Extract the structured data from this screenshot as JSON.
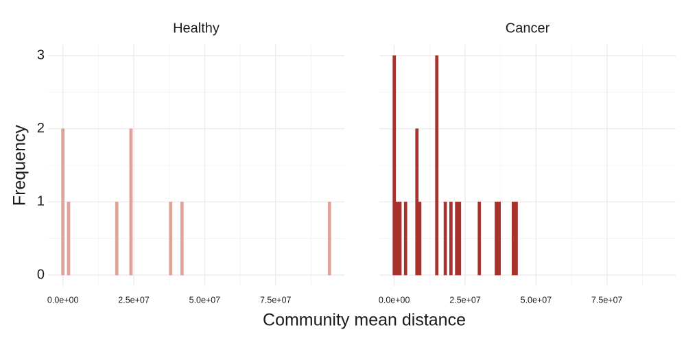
{
  "chart_data": [
    {
      "type": "histogram",
      "title": "Healthy",
      "color": "#e0a39a",
      "bins": [
        -500000,
        500000,
        1500000,
        2500000,
        3500000,
        4500000,
        5500000,
        6500000,
        7500000,
        8500000,
        9500000,
        10500000,
        11500000,
        12500000,
        13500000,
        14500000,
        15500000,
        16500000,
        17500000,
        18500000,
        19500000,
        20500000,
        21500000,
        22500000,
        23500000,
        24500000,
        25500000,
        26500000,
        27500000,
        28500000,
        29500000,
        30500000,
        31500000,
        32500000,
        33500000,
        34500000,
        35500000,
        36500000,
        37500000,
        38500000,
        39500000,
        40500000,
        41500000,
        42500000,
        43500000,
        44500000,
        45500000,
        46500000,
        47500000,
        48500000,
        49500000,
        50500000,
        51500000,
        52500000,
        53500000,
        54500000,
        55500000,
        56500000,
        57500000,
        58500000,
        59500000,
        60500000,
        61500000,
        62500000,
        63500000,
        64500000,
        65500000,
        66500000,
        67500000,
        68500000,
        69500000,
        70500000,
        71500000,
        72500000,
        73500000,
        74500000,
        75500000,
        76500000,
        77500000,
        78500000,
        79500000,
        80500000,
        81500000,
        82500000,
        83500000,
        84500000,
        85500000,
        86500000,
        87500000,
        88500000,
        89500000,
        90500000,
        91500000,
        92500000,
        93500000,
        94500000
      ],
      "values": [
        2,
        0,
        1,
        0,
        0,
        0,
        0,
        0,
        0,
        0,
        0,
        0,
        0,
        0,
        0,
        0,
        0,
        0,
        0,
        1,
        0,
        0,
        0,
        0,
        2,
        0,
        0,
        0,
        0,
        0,
        0,
        0,
        0,
        0,
        0,
        0,
        0,
        0,
        1,
        0,
        0,
        0,
        1,
        0,
        0,
        0,
        0,
        0,
        0,
        0,
        0,
        0,
        0,
        0,
        0,
        0,
        0,
        0,
        0,
        0,
        0,
        0,
        0,
        0,
        0,
        0,
        0,
        0,
        0,
        0,
        0,
        0,
        0,
        0,
        0,
        0,
        0,
        0,
        0,
        0,
        0,
        0,
        0,
        0,
        0,
        0,
        0,
        0,
        0,
        0,
        0,
        0,
        0,
        0,
        1
      ],
      "xlim": [
        -5250000,
        99250000
      ],
      "ylim": [
        -0.15,
        3.15
      ],
      "xticks": [
        {
          "value": 0,
          "label": "0.0e+00"
        },
        {
          "value": 25000000,
          "label": "2.5e+07"
        },
        {
          "value": 50000000,
          "label": "5.0e+07"
        },
        {
          "value": 75000000,
          "label": "7.5e+07"
        }
      ],
      "minor_xticks": [
        12500000,
        37500000,
        62500000,
        87500000
      ],
      "yticks": [
        0,
        1,
        2,
        3
      ],
      "minor_yticks": [
        0.5,
        1.5,
        2.5
      ],
      "grid": true
    },
    {
      "type": "histogram",
      "title": "Cancer",
      "color": "#a8322d",
      "bins": [
        -500000,
        500000,
        1500000,
        2500000,
        3500000,
        4500000,
        5500000,
        6500000,
        7500000,
        8500000,
        9500000,
        10500000,
        11500000,
        12500000,
        13500000,
        14500000,
        15500000,
        16500000,
        17500000,
        18500000,
        19500000,
        20500000,
        21500000,
        22500000,
        23500000,
        24500000,
        25500000,
        26500000,
        27500000,
        28500000,
        29500000,
        30500000,
        31500000,
        32500000,
        33500000,
        34500000,
        35500000,
        36500000,
        37500000,
        38500000,
        39500000,
        40500000,
        41500000,
        42500000,
        43500000,
        44500000,
        45500000,
        46500000,
        47500000,
        48500000,
        49500000,
        50500000,
        51500000,
        52500000,
        53500000,
        54500000,
        55500000,
        56500000,
        57500000,
        58500000,
        59500000,
        60500000,
        61500000,
        62500000,
        63500000,
        64500000,
        65500000,
        66500000,
        67500000,
        68500000,
        69500000,
        70500000,
        71500000,
        72500000,
        73500000,
        74500000,
        75500000,
        76500000,
        77500000,
        78500000,
        79500000,
        80500000,
        81500000,
        82500000,
        83500000,
        84500000,
        85500000,
        86500000,
        87500000,
        88500000,
        89500000,
        90500000,
        91500000,
        92500000,
        93500000,
        94500000
      ],
      "values": [
        3,
        1,
        1,
        0,
        1,
        0,
        0,
        0,
        2,
        1,
        0,
        0,
        0,
        0,
        0,
        3,
        0,
        0,
        1,
        0,
        1,
        0,
        1,
        1,
        0,
        0,
        0,
        0,
        0,
        0,
        1,
        0,
        0,
        0,
        0,
        0,
        1,
        1,
        0,
        0,
        0,
        0,
        1,
        1,
        0,
        0,
        0,
        0,
        0,
        0,
        0,
        0,
        0,
        0,
        0,
        0,
        0,
        0,
        0,
        0,
        0,
        0,
        0,
        0,
        0,
        0,
        0,
        0,
        0,
        0,
        0,
        0,
        0,
        0,
        0,
        0,
        0,
        0,
        0,
        0,
        0,
        0,
        0,
        0,
        0,
        0,
        0,
        0,
        0,
        0,
        0,
        0,
        0,
        0,
        0
      ],
      "xlim": [
        -5250000,
        99250000
      ],
      "ylim": [
        -0.15,
        3.15
      ],
      "xticks": [
        {
          "value": 0,
          "label": "0.0e+00"
        },
        {
          "value": 25000000,
          "label": "2.5e+07"
        },
        {
          "value": 50000000,
          "label": "5.0e+07"
        },
        {
          "value": 75000000,
          "label": "7.5e+07"
        }
      ],
      "minor_xticks": [
        12500000,
        37500000,
        62500000,
        87500000
      ],
      "yticks": [
        0,
        1,
        2,
        3
      ],
      "minor_yticks": [
        0.5,
        1.5,
        2.5
      ],
      "grid": true
    }
  ],
  "x_label": "Community mean distance",
  "y_label": "Frequency"
}
